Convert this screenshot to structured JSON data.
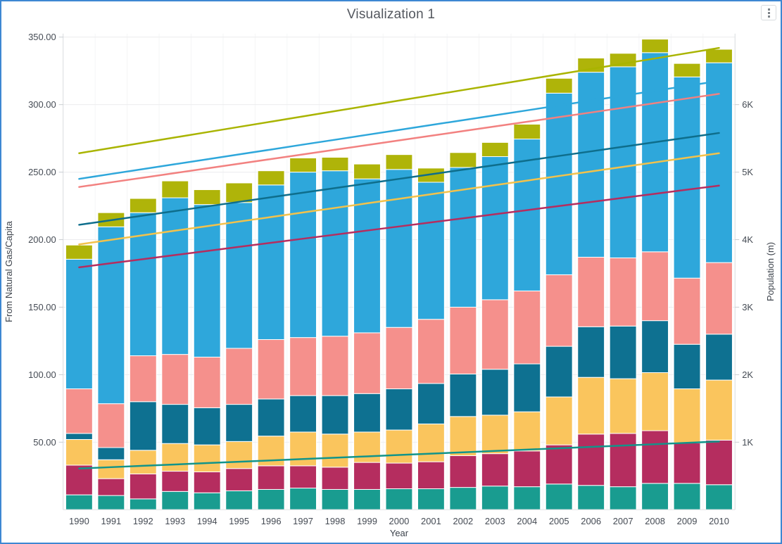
{
  "widget": {
    "title": "Visualization 1",
    "border_color": "#3d87d2",
    "menu_icon": "kebab-menu-icon"
  },
  "chart_data": {
    "type": "bar",
    "stacked": true,
    "overlay_type": "line",
    "title": "Visualization 1",
    "xlabel": "Year",
    "ylabel_left": "From Natural Gas/Capita",
    "ylabel_right": "Population (m)",
    "grid": true,
    "legend": "none",
    "y_left": {
      "min": 0,
      "max": 350,
      "ticks": [
        {
          "value": 50,
          "label": "50.00"
        },
        {
          "value": 100,
          "label": "100.00"
        },
        {
          "value": 150,
          "label": "150.00"
        },
        {
          "value": 200,
          "label": "200.00"
        },
        {
          "value": 250,
          "label": "250.00"
        },
        {
          "value": 300,
          "label": "300.00"
        },
        {
          "value": 350,
          "label": "350.00"
        }
      ]
    },
    "y_right": {
      "min": 0,
      "max": 7000,
      "ticks": [
        {
          "value": 1000,
          "label": "1K"
        },
        {
          "value": 2000,
          "label": "2K"
        },
        {
          "value": 3000,
          "label": "3K"
        },
        {
          "value": 4000,
          "label": "4K"
        },
        {
          "value": 5000,
          "label": "5K"
        },
        {
          "value": 6000,
          "label": "6K"
        }
      ]
    },
    "categories": [
      "1990",
      "1991",
      "1992",
      "1993",
      "1994",
      "1995",
      "1996",
      "1997",
      "1998",
      "1999",
      "2000",
      "2001",
      "2002",
      "2003",
      "2004",
      "2005",
      "2006",
      "2007",
      "2008",
      "2009",
      "2010"
    ],
    "bar_series": [
      {
        "name": "segment-teal",
        "color": "#199C90",
        "values": [
          11,
          10.5,
          8,
          13.5,
          12.5,
          14,
          15,
          16,
          15,
          15,
          15.5,
          15.5,
          16.5,
          17.5,
          17,
          19,
          18,
          17,
          19.5,
          19.5,
          18.5
        ]
      },
      {
        "name": "segment-crimson",
        "color": "#B52D5F",
        "values": [
          22,
          12.5,
          18.5,
          15,
          15.5,
          16.5,
          17.5,
          16.5,
          16.5,
          20,
          19,
          20,
          23.5,
          24,
          26.5,
          29,
          38,
          39.5,
          39,
          30,
          33
        ]
      },
      {
        "name": "segment-yellow",
        "color": "#FAC55D",
        "values": [
          19,
          14,
          17.5,
          20.5,
          20,
          20,
          22,
          25,
          24.5,
          22.5,
          24.5,
          28,
          29,
          28.5,
          29,
          35.5,
          42,
          40.5,
          43,
          40,
          44.5
        ]
      },
      {
        "name": "segment-darkpetrol",
        "color": "#0E7191",
        "values": [
          4.5,
          9,
          36,
          29,
          27.5,
          27.5,
          27.5,
          27,
          28.5,
          28.5,
          30.5,
          30,
          31.5,
          34,
          35.5,
          37.5,
          37.5,
          39,
          38.5,
          33,
          34
        ]
      },
      {
        "name": "segment-pink",
        "color": "#F5908C",
        "values": [
          33,
          32.5,
          34,
          37,
          37.5,
          41.5,
          44,
          43,
          44,
          45,
          45.5,
          47.5,
          49.5,
          51.5,
          54,
          53,
          51.5,
          50.5,
          51,
          49,
          53
        ]
      },
      {
        "name": "segment-lightblue",
        "color": "#2EA7DB",
        "values": [
          96,
          131,
          106,
          116,
          113,
          108,
          114.5,
          122.5,
          122.5,
          114,
          117,
          101.5,
          103.5,
          106,
          112.5,
          134.5,
          137,
          141.5,
          147.5,
          149,
          148
        ]
      },
      {
        "name": "segment-olive",
        "color": "#AFB409",
        "values": [
          10.5,
          10.5,
          10.5,
          12.5,
          11,
          14.5,
          10.5,
          10.5,
          10,
          11,
          11,
          10.5,
          11,
          10.5,
          11,
          11,
          10.5,
          10,
          10,
          10,
          10
        ]
      }
    ],
    "line_series": [
      {
        "name": "line-olive",
        "color": "#A9B400",
        "values": [
          5280,
          5358,
          5436,
          5514,
          5592,
          5670,
          5748,
          5826,
          5904,
          5982,
          6060,
          6138,
          6216,
          6294,
          6372,
          6450,
          6528,
          6606,
          6684,
          6762,
          6840
        ]
      },
      {
        "name": "line-lightblue",
        "color": "#2EA7DB",
        "values": [
          4900,
          4973,
          5045,
          5118,
          5190,
          5263,
          5335,
          5408,
          5480,
          5553,
          5625,
          5698,
          5770,
          5843,
          5915,
          5988,
          6060,
          6133,
          6205,
          6278,
          6350
        ]
      },
      {
        "name": "line-pink",
        "color": "#F28180",
        "values": [
          4780,
          4849,
          4918,
          4987,
          5056,
          5125,
          5194,
          5263,
          5332,
          5401,
          5470,
          5539,
          5608,
          5677,
          5746,
          5815,
          5884,
          5953,
          6022,
          6091,
          6160
        ]
      },
      {
        "name": "line-darkpetrol",
        "color": "#0E6E8C",
        "values": [
          4220,
          4288,
          4356,
          4424,
          4492,
          4560,
          4628,
          4696,
          4764,
          4832,
          4900,
          4968,
          5036,
          5104,
          5172,
          5240,
          5308,
          5376,
          5444,
          5512,
          5580
        ]
      },
      {
        "name": "line-yellow",
        "color": "#F3C24B",
        "values": [
          3930,
          3998,
          4065,
          4133,
          4200,
          4268,
          4335,
          4403,
          4470,
          4538,
          4605,
          4673,
          4740,
          4808,
          4875,
          4943,
          5010,
          5078,
          5145,
          5213,
          5280
        ]
      },
      {
        "name": "line-crimson",
        "color": "#B52D5F",
        "values": [
          3590,
          3651,
          3711,
          3772,
          3832,
          3893,
          3953,
          4014,
          4074,
          4135,
          4195,
          4256,
          4316,
          4377,
          4437,
          4498,
          4558,
          4619,
          4679,
          4740,
          4800
        ]
      },
      {
        "name": "line-teal",
        "color": "#12948A",
        "values": [
          610,
          630,
          650,
          670,
          690,
          710,
          730,
          750,
          770,
          790,
          810,
          830,
          850,
          870,
          890,
          910,
          930,
          950,
          970,
          990,
          1010
        ]
      }
    ]
  }
}
